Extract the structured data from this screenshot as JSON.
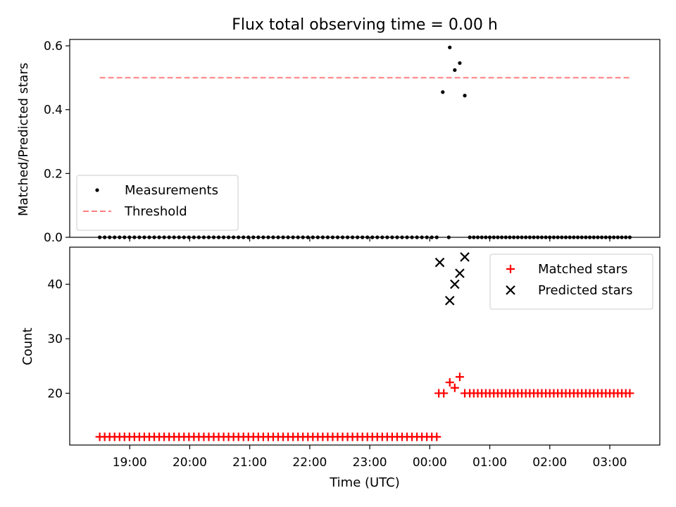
{
  "figure": {
    "title": "Flux total observing time = 0.00 h",
    "xlabel": "Time (UTC)"
  },
  "chart_data": [
    {
      "type": "scatter",
      "ylabel": "Matched/Predicted stars",
      "ylim": [
        0,
        0.62
      ],
      "yticks": [
        "0.0",
        "0.2",
        "0.4",
        "0.6"
      ],
      "ytick_values": [
        0,
        0.2,
        0.4,
        0.6
      ],
      "legend_placement": "lower-left",
      "series": [
        {
          "name": "Measurements",
          "marker": "dot",
          "color": "#000000",
          "zero_runs": [
            {
              "start": "18:30",
              "end": "00:07",
              "count": 69
            },
            {
              "start": "00:40",
              "end": "03:20",
              "count": 41
            }
          ],
          "points": [
            {
              "x": "00:13",
              "y": 0.455
            },
            {
              "x": "00:19",
              "y": 0.0
            },
            {
              "x": "00:20",
              "y": 0.595
            },
            {
              "x": "00:25",
              "y": 0.524
            },
            {
              "x": "00:30",
              "y": 0.546
            },
            {
              "x": "00:35",
              "y": 0.444
            }
          ]
        },
        {
          "name": "Threshold",
          "style": "dashed-line",
          "color": "#ff7f7f",
          "x": [
            "18:30",
            "03:20"
          ],
          "y": [
            0.5,
            0.5
          ]
        }
      ]
    },
    {
      "type": "scatter",
      "ylabel": "Count",
      "ylim": [
        10.5,
        46.8
      ],
      "yticks": [
        "20",
        "30",
        "40"
      ],
      "ytick_values": [
        20,
        30,
        40
      ],
      "legend_placement": "upper-right",
      "series": [
        {
          "name": "Matched stars",
          "marker": "plus",
          "color": "#ff0000",
          "runs": [
            {
              "start": "18:30",
              "end": "00:07",
              "count": 69,
              "value": 12
            },
            {
              "start": "00:40",
              "end": "03:20",
              "count": 41,
              "value": 20
            }
          ],
          "points": [
            {
              "x": "00:09",
              "y": 20
            },
            {
              "x": "00:14",
              "y": 20
            },
            {
              "x": "00:20",
              "y": 22
            },
            {
              "x": "00:25",
              "y": 21
            },
            {
              "x": "00:30",
              "y": 23
            },
            {
              "x": "00:35",
              "y": 20
            }
          ]
        },
        {
          "name": "Predicted stars",
          "marker": "x",
          "color": "#000000",
          "points": [
            {
              "x": "00:10",
              "y": 44
            },
            {
              "x": "00:20",
              "y": 37
            },
            {
              "x": "00:25",
              "y": 40
            },
            {
              "x": "00:30",
              "y": 42
            },
            {
              "x": "00:35",
              "y": 45
            }
          ]
        }
      ]
    }
  ],
  "x_axis": {
    "domain": [
      "18:00",
      "03:50"
    ],
    "day_rollover_after": "23:59",
    "ticks": [
      "19:00",
      "20:00",
      "21:00",
      "22:00",
      "23:00",
      "00:00",
      "01:00",
      "02:00",
      "03:00"
    ]
  }
}
